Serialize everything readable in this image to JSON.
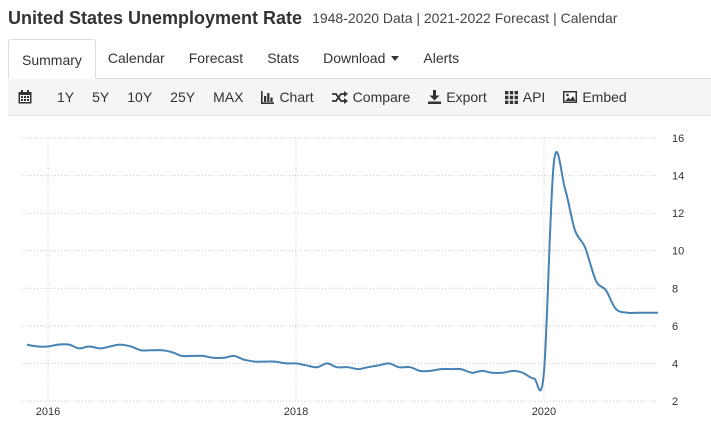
{
  "header": {
    "title": "United States Unemployment Rate",
    "subtitle": "1948-2020 Data | 2021-2022 Forecast | Calendar"
  },
  "tabs": [
    {
      "label": "Summary",
      "active": true
    },
    {
      "label": "Calendar"
    },
    {
      "label": "Forecast"
    },
    {
      "label": "Stats"
    },
    {
      "label": "Download"
    },
    {
      "label": "Alerts"
    }
  ],
  "toolbar": {
    "calendar_icon": "calendar-icon",
    "ranges": [
      "1Y",
      "5Y",
      "10Y",
      "25Y",
      "MAX"
    ],
    "chart_label": "Chart",
    "compare_label": "Compare",
    "export_label": "Export",
    "api_label": "API",
    "embed_label": "Embed"
  },
  "colors": {
    "line": "#4682b4",
    "grid": "#c8c8c8",
    "toolbar_bg": "#f5f5f5"
  },
  "chart_data": {
    "type": "line",
    "title": "",
    "xlabel": "",
    "ylabel": "",
    "xlim": [
      2015.79,
      2020.92
    ],
    "ylim": [
      2,
      16
    ],
    "yticks": [
      "2",
      "4",
      "6",
      "8",
      "10",
      "12",
      "14",
      "16"
    ],
    "xticks": [
      "2016",
      "2018",
      "2020"
    ],
    "grid": true,
    "series": [
      {
        "x": [
          2015.83,
          2015.92,
          2016.0,
          2016.08,
          2016.17,
          2016.25,
          2016.33,
          2016.42,
          2016.5,
          2016.58,
          2016.67,
          2016.75,
          2016.83,
          2016.92,
          2017.0,
          2017.08,
          2017.17,
          2017.25,
          2017.33,
          2017.42,
          2017.5,
          2017.58,
          2017.67,
          2017.75,
          2017.83,
          2017.92,
          2018.0,
          2018.08,
          2018.17,
          2018.25,
          2018.33,
          2018.42,
          2018.5,
          2018.58,
          2018.67,
          2018.75,
          2018.83,
          2018.92,
          2019.0,
          2019.08,
          2019.17,
          2019.25,
          2019.33,
          2019.42,
          2019.5,
          2019.58,
          2019.67,
          2019.75,
          2019.83,
          2019.92,
          2020.0,
          2020.08,
          2020.17,
          2020.25,
          2020.33,
          2020.42,
          2020.5,
          2020.58,
          2020.67,
          2020.75,
          2020.83,
          2020.92
        ],
        "y": [
          5.0,
          4.9,
          4.9,
          5.0,
          5.0,
          4.8,
          4.9,
          4.8,
          4.9,
          5.0,
          4.9,
          4.7,
          4.7,
          4.7,
          4.6,
          4.4,
          4.4,
          4.4,
          4.3,
          4.3,
          4.4,
          4.2,
          4.1,
          4.1,
          4.1,
          4.0,
          4.0,
          3.9,
          3.8,
          4.0,
          3.8,
          3.8,
          3.7,
          3.8,
          3.9,
          4.0,
          3.8,
          3.8,
          3.6,
          3.6,
          3.7,
          3.7,
          3.7,
          3.5,
          3.6,
          3.5,
          3.5,
          3.6,
          3.5,
          3.2,
          3.5,
          14.7,
          13.3,
          11.1,
          10.2,
          8.4,
          7.9,
          6.9,
          6.7,
          6.7,
          6.7,
          6.7
        ]
      }
    ]
  }
}
